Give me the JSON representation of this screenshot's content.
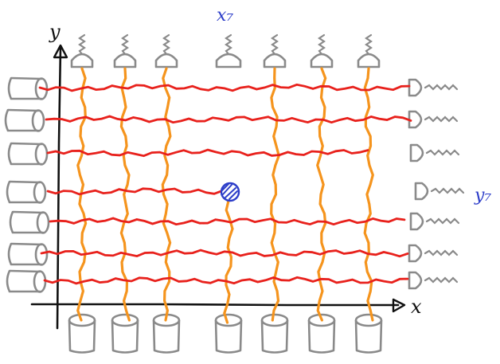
{
  "axes": {
    "x_label": "x",
    "y_label": "y"
  },
  "annotations": {
    "column_label": "x₇",
    "row_label": "y₇"
  },
  "grid": {
    "rows": 7,
    "columns": 7,
    "missing_column_wire": 4,
    "missing_row_wire": 4,
    "defect_at": {
      "column": 4,
      "row": 4
    }
  },
  "colors": {
    "row_wire": "#e8211c",
    "column_wire": "#f5941d",
    "component_outline": "#8a8a8a",
    "axes": "#111111",
    "annotation": "#2d3ec9"
  }
}
